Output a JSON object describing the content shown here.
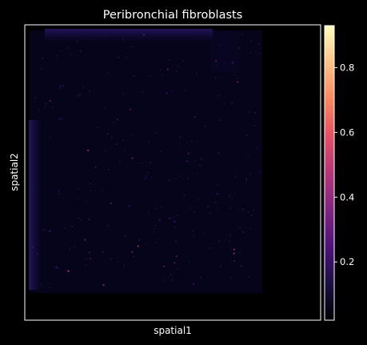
{
  "chart_data": {
    "type": "heatmap",
    "title": "Peribronchial fibroblasts",
    "xlabel": "spatial1",
    "ylabel": "spatial2",
    "colormap": "magma",
    "colorbar": {
      "range": [
        0.02,
        0.93
      ],
      "ticks": [
        0.2,
        0.4,
        0.6,
        0.8
      ],
      "tick_labels": [
        "0.2",
        "0.4",
        "0.6",
        "0.8"
      ]
    },
    "background": "#000000",
    "foreground": "#ffffff",
    "grid": false
  }
}
